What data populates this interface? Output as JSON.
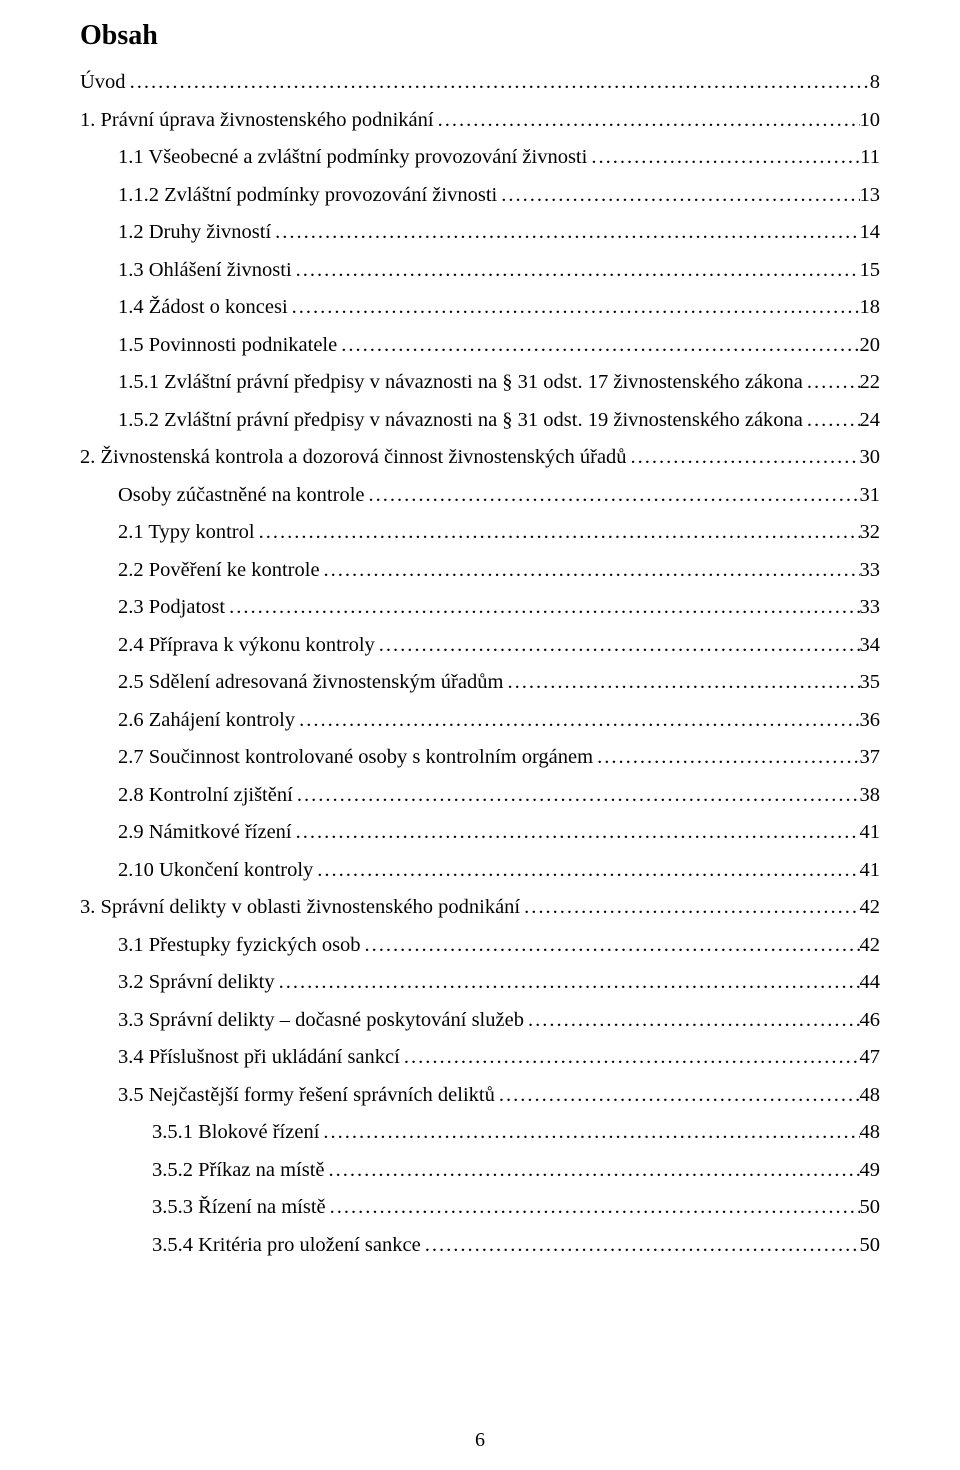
{
  "title": "Obsah",
  "page_number": "6",
  "font": {
    "family": "Times New Roman",
    "body_size_pt": 15,
    "title_size_pt": 21,
    "title_weight": "bold"
  },
  "colors": {
    "text": "#000000",
    "background": "#ffffff"
  },
  "toc": [
    {
      "label": "Úvod",
      "page": "8",
      "indent": 0
    },
    {
      "label": "1.    Právní úprava živnostenského podnikání",
      "page": "10",
      "indent": 0
    },
    {
      "label": "1.1 Všeobecné a zvláštní podmínky provozování živnosti",
      "page": "11",
      "indent": 1
    },
    {
      "label": "1.1.2 Zvláštní podmínky provozování živnosti",
      "page": "13",
      "indent": 1
    },
    {
      "label": "1.2 Druhy živností",
      "page": "14",
      "indent": 1
    },
    {
      "label": "1.3 Ohlášení živnosti",
      "page": "15",
      "indent": 1
    },
    {
      "label": "1.4 Žádost o koncesi",
      "page": "18",
      "indent": 1
    },
    {
      "label": "1.5 Povinnosti podnikatele",
      "page": "20",
      "indent": 1
    },
    {
      "label": "1.5.1 Zvláštní právní předpisy v návaznosti na § 31 odst. 17 živnostenského zákona",
      "page": "22",
      "indent": 1
    },
    {
      "label": "1.5.2 Zvláštní právní předpisy v návaznosti na § 31 odst. 19 živnostenského zákona",
      "page": "24",
      "indent": 1
    },
    {
      "label": "2.    Živnostenská kontrola a dozorová činnost živnostenských úřadů",
      "page": "30",
      "indent": 0
    },
    {
      "label": "Osoby zúčastněné na kontrole",
      "page": "31",
      "indent": 1
    },
    {
      "label": "2.1 Typy kontrol",
      "page": "32",
      "indent": 1
    },
    {
      "label": "2.2 Pověření ke kontrole",
      "page": "33",
      "indent": 1
    },
    {
      "label": "2.3 Podjatost",
      "page": "33",
      "indent": 1
    },
    {
      "label": "2.4 Příprava k výkonu kontroly",
      "page": "34",
      "indent": 1
    },
    {
      "label": "2.5 Sdělení adresovaná živnostenským úřadům",
      "page": "35",
      "indent": 1
    },
    {
      "label": "2.6 Zahájení kontroly",
      "page": "36",
      "indent": 1
    },
    {
      "label": "2.7 Součinnost kontrolované osoby s kontrolním orgánem",
      "page": "37",
      "indent": 1
    },
    {
      "label": "2.8 Kontrolní zjištění",
      "page": "38",
      "indent": 1
    },
    {
      "label": "2.9 Námitkové řízení",
      "page": "41",
      "indent": 1
    },
    {
      "label": "2.10 Ukončení kontroly",
      "page": "41",
      "indent": 1
    },
    {
      "label": "3.    Správní delikty v oblasti živnostenského podnikání",
      "page": "42",
      "indent": 0
    },
    {
      "label": "3.1 Přestupky fyzických osob",
      "page": "42",
      "indent": 1
    },
    {
      "label": "3.2 Správní delikty",
      "page": "44",
      "indent": 1
    },
    {
      "label": "3.3 Správní delikty – dočasné poskytování služeb",
      "page": "46",
      "indent": 1
    },
    {
      "label": "3.4 Příslušnost při ukládání sankcí",
      "page": "47",
      "indent": 1
    },
    {
      "label": "3.5 Nejčastější formy řešení správních deliktů",
      "page": "48",
      "indent": 1
    },
    {
      "label": "3.5.1 Blokové řízení",
      "page": "48",
      "indent": 2
    },
    {
      "label": "3.5.2 Příkaz na místě",
      "page": "49",
      "indent": 2
    },
    {
      "label": "3.5.3 Řízení na místě",
      "page": "50",
      "indent": 2
    },
    {
      "label": "3.5.4 Kritéria pro uložení sankce",
      "page": "50",
      "indent": 2
    }
  ]
}
